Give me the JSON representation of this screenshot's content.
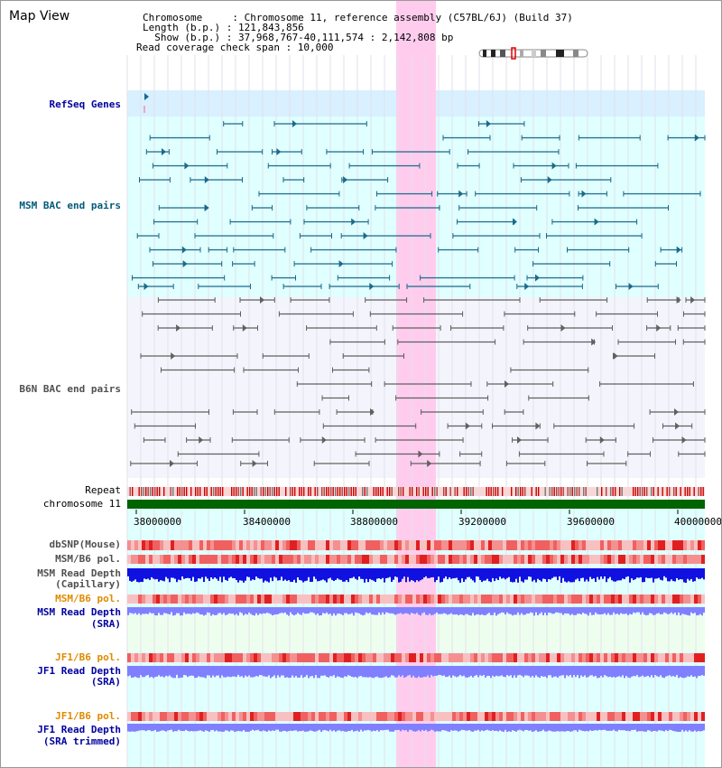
{
  "title": "Map View",
  "info": {
    "chromosome": "Chromosome     : Chromosome 11, reference assembly (C57BL/6J) (Build 37)",
    "length": "Length (b.p.) : 121,843,856",
    "show": "  Show (b.p.) : 37,968,767-40,111,574 : 2,142,808 bp",
    "coverage": "Read coverage check span : 10,000"
  },
  "tracks": {
    "refseq": "RefSeq Genes",
    "msm_bac": "MSM BAC end pairs",
    "b6n_bac": "B6N BAC end pairs",
    "repeat": "Repeat",
    "chromosome": "chromosome 11",
    "dbsnp": "dbSNP(Mouse)",
    "msm_b6_pol": "MSM/B6 pol.",
    "msm_depth_cap_1": "MSM Read Depth",
    "msm_depth_cap_2": "(Capillary)",
    "msm_b6_pol2": "MSM/B6 pol.",
    "msm_depth_sra_1": "MSM Read Depth",
    "msm_depth_sra_2": "(SRA)",
    "jf1_b6_pol": "JF1/B6 pol.",
    "jf1_depth_1": "JF1 Read Depth",
    "jf1_depth_2": "(SRA)",
    "jf1_b6_pol2": "JF1/B6 pol.",
    "jf1_trim_1": "JF1 Read Depth",
    "jf1_trim_2": "(SRA trimmed)"
  },
  "axis_ticks": [
    "38000000",
    "38400000",
    "38800000",
    "39200000",
    "39600000",
    "40000000"
  ],
  "colors": {
    "refseq_label": "#0000a0",
    "msm_label": "#005a78",
    "b6n_label": "#505050",
    "orange_label": "#e08a00",
    "blue_label": "#0000a0",
    "highlight": "#ffccee",
    "cyan_bg": "#e0ffff",
    "chromosome_bar": "#006400",
    "repeat_red": "#cc0000",
    "depth_dark": "#1010e0",
    "depth_light": "#8080ff"
  }
}
